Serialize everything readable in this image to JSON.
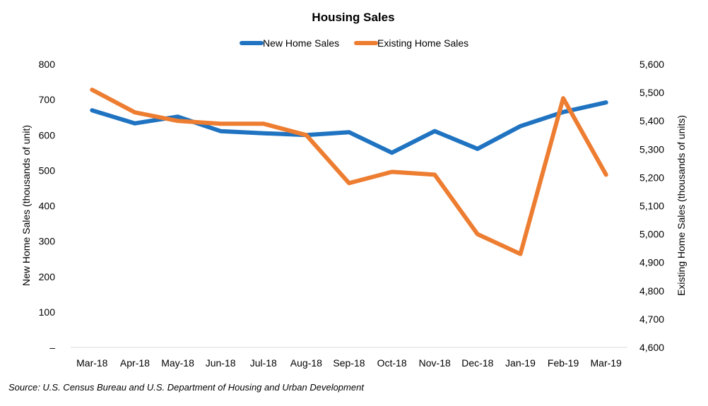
{
  "chart_data": {
    "type": "line",
    "title": "Housing Sales",
    "categories": [
      "Mar-18",
      "Apr-18",
      "May-18",
      "Jun-18",
      "Jul-18",
      "Aug-18",
      "Sep-18",
      "Oct-18",
      "Nov-18",
      "Dec-18",
      "Jan-19",
      "Feb-19",
      "Mar-19"
    ],
    "series": [
      {
        "name": "New Home Sales",
        "axis": "left",
        "color": "#1f73c1",
        "values": [
          670,
          633,
          652,
          611,
          605,
          600,
          608,
          550,
          611,
          561,
          625,
          665,
          692
        ]
      },
      {
        "name": "Existing Home Sales",
        "axis": "right",
        "color": "#ed7d31",
        "values": [
          5510,
          5430,
          5400,
          5390,
          5390,
          5350,
          5180,
          5220,
          5210,
          5000,
          4930,
          5480,
          5210
        ]
      }
    ],
    "ylabel": "New Home Sales (thousands of unit)",
    "y2label": "Existing Home Sales (thousands of units)",
    "ylim": [
      0,
      800
    ],
    "y2lim": [
      4600,
      5600
    ],
    "yticks": [
      "–",
      "100",
      "200",
      "300",
      "400",
      "500",
      "600",
      "700",
      "800"
    ],
    "y2ticks": [
      "4,600",
      "4,700",
      "4,800",
      "4,900",
      "5,000",
      "5,100",
      "5,200",
      "5,300",
      "5,400",
      "5,500",
      "5,600"
    ],
    "legend_position": "top-center",
    "grid": false
  },
  "source": "Source: U.S. Census Bureau and U.S. Department of Housing and Urban Development"
}
